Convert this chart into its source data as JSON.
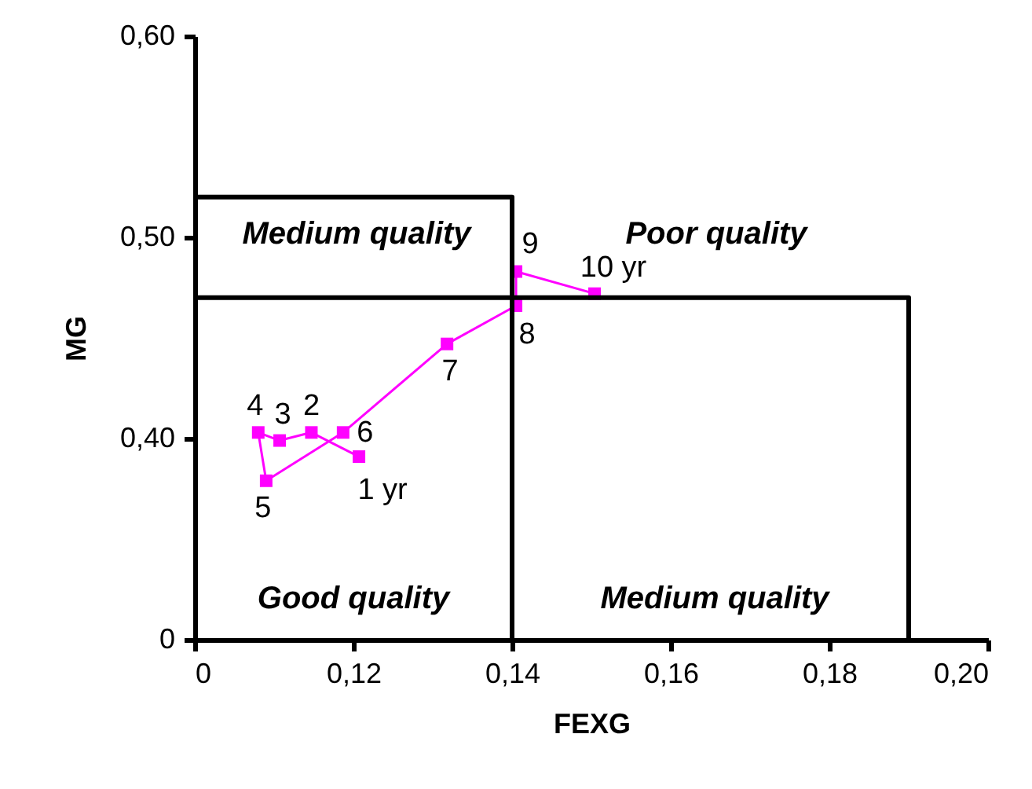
{
  "chart_data": {
    "type": "line",
    "xlabel": "FEXG",
    "ylabel": "MG",
    "xlim": [
      0.1,
      0.2
    ],
    "ylim": [
      0.3,
      0.6
    ],
    "xticks": [
      {
        "value": 0.1,
        "label": "0"
      },
      {
        "value": 0.12,
        "label": "0,12"
      },
      {
        "value": 0.14,
        "label": "0,14"
      },
      {
        "value": 0.16,
        "label": "0,16"
      },
      {
        "value": 0.18,
        "label": "0,18"
      },
      {
        "value": 0.2,
        "label": "0,20"
      }
    ],
    "yticks": [
      {
        "value": 0.3,
        "label": "0"
      },
      {
        "value": 0.4,
        "label": "0,40"
      },
      {
        "value": 0.5,
        "label": "0,50"
      },
      {
        "value": 0.6,
        "label": "0,60"
      }
    ],
    "grid": false,
    "marker": "square",
    "line_style": "solid",
    "series": [
      {
        "color": "#ff00ff",
        "x": [
          0.1207,
          0.1147,
          0.1107,
          0.108,
          0.109,
          0.1187,
          0.1318,
          0.1405,
          0.1405,
          0.1504
        ],
        "values": [
          0.391,
          0.403,
          0.399,
          0.403,
          0.379,
          0.403,
          0.447,
          0.466,
          0.483,
          0.472
        ]
      },
      {
        "type": "line",
        "marker": "none",
        "color": "#000000",
        "x": [
          0.1,
          0.14,
          0.14
        ],
        "values": [
          0.52,
          0.52,
          0.3
        ]
      },
      {
        "type": "line",
        "marker": "none",
        "color": "#000000",
        "x": [
          0.1,
          0.19,
          0.19
        ],
        "values": [
          0.47,
          0.47,
          0.3
        ]
      }
    ],
    "annotations": [
      "Medium quality",
      "Poor quality",
      "Good quality",
      "Medium quality",
      {
        "text": "1 yr",
        "x": 0.1207,
        "y": 0.391
      },
      {
        "text": "2",
        "x": 0.1147,
        "y": 0.403
      },
      {
        "text": "3",
        "x": 0.1107,
        "y": 0.399
      },
      {
        "text": "4",
        "x": 0.108,
        "y": 0.403
      },
      {
        "text": "5",
        "x": 0.109,
        "y": 0.379
      },
      {
        "text": "6",
        "x": 0.1187,
        "y": 0.403
      },
      {
        "text": "7",
        "x": 0.1318,
        "y": 0.447
      },
      {
        "text": "8",
        "x": 0.1405,
        "y": 0.466
      },
      {
        "text": "9",
        "x": 0.1405,
        "y": 0.483
      },
      {
        "text": "10 yr",
        "x": 0.1504,
        "y": 0.472
      }
    ]
  }
}
